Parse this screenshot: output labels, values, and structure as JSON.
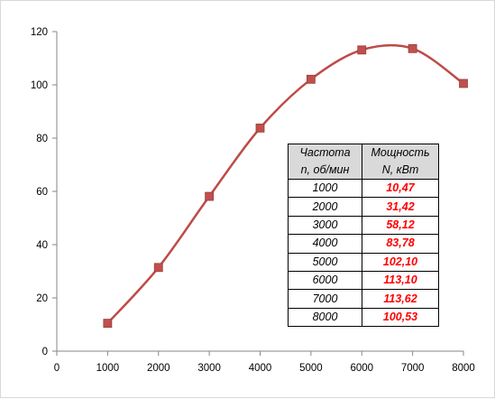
{
  "chart_data": {
    "type": "line",
    "title": "",
    "xlabel": "",
    "ylabel": "",
    "xlim": [
      0,
      8000
    ],
    "ylim": [
      0,
      120
    ],
    "x_ticks": [
      "0",
      "1000",
      "2000",
      "3000",
      "4000",
      "5000",
      "6000",
      "7000",
      "8000"
    ],
    "y_ticks": [
      "0",
      "20",
      "40",
      "60",
      "80",
      "100",
      "120"
    ],
    "grid": false,
    "smooth": true,
    "series": [
      {
        "color": "#be4b48",
        "marker_color": "#c0504d",
        "points": [
          {
            "x": 1000,
            "y": 10.47
          },
          {
            "x": 2000,
            "y": 31.42
          },
          {
            "x": 3000,
            "y": 58.12
          },
          {
            "x": 4000,
            "y": 83.78
          },
          {
            "x": 5000,
            "y": 102.1
          },
          {
            "x": 6000,
            "y": 113.1
          },
          {
            "x": 7000,
            "y": 113.62
          },
          {
            "x": 8000,
            "y": 100.53
          }
        ]
      }
    ]
  },
  "table": {
    "header_col1_line1": "Частота",
    "header_col1_line2": "n, об/мин",
    "header_col2_line1": "Мощность",
    "header_col2_line2": "N, кВт",
    "rows": [
      {
        "speed": "1000",
        "power": "10,47"
      },
      {
        "speed": "2000",
        "power": "31,42"
      },
      {
        "speed": "3000",
        "power": "58,12"
      },
      {
        "speed": "4000",
        "power": "83,78"
      },
      {
        "speed": "5000",
        "power": "102,10"
      },
      {
        "speed": "6000",
        "power": "113,10"
      },
      {
        "speed": "7000",
        "power": "113,62"
      },
      {
        "speed": "8000",
        "power": "100,53"
      }
    ]
  }
}
